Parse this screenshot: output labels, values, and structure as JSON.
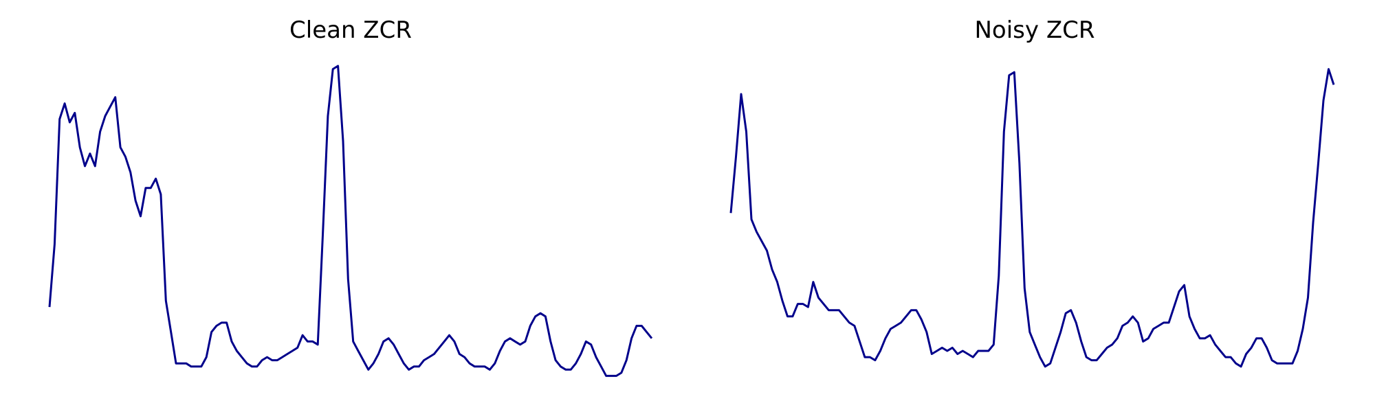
{
  "chart_data": [
    {
      "type": "line",
      "title": "Clean ZCR",
      "xlabel": "",
      "ylabel": "",
      "grid": false,
      "axes_visible": false,
      "color": "#00008B",
      "ylim": [
        0,
        1
      ],
      "x": [
        0,
        1,
        2,
        3,
        4,
        5,
        6,
        7,
        8,
        9,
        10,
        11,
        12,
        13,
        14,
        15,
        16,
        17,
        18,
        19,
        20,
        21,
        22,
        23,
        24,
        25,
        26,
        27,
        28,
        29,
        30,
        31,
        32,
        33,
        34,
        35,
        36,
        37,
        38,
        39,
        40,
        41,
        42,
        43,
        44,
        45,
        46,
        47,
        48,
        49,
        50,
        51,
        52,
        53,
        54,
        55,
        56,
        57,
        58,
        59,
        60,
        61,
        62,
        63,
        64,
        65,
        66,
        67,
        68,
        69,
        70,
        71,
        72,
        73,
        74,
        75,
        76,
        77,
        78,
        79,
        80,
        81,
        82,
        83,
        84,
        85,
        86,
        87,
        88,
        89,
        90,
        91,
        92,
        93,
        94,
        95,
        96,
        97,
        98,
        99,
        100,
        101,
        102,
        103,
        104,
        105,
        106,
        107,
        108,
        109,
        110,
        111,
        112,
        113,
        114,
        115,
        116,
        117,
        118,
        119
      ],
      "series": [
        {
          "values": [
            0.23,
            0.43,
            0.83,
            0.88,
            0.82,
            0.85,
            0.74,
            0.68,
            0.72,
            0.68,
            0.79,
            0.84,
            0.87,
            0.9,
            0.74,
            0.71,
            0.66,
            0.57,
            0.52,
            0.61,
            0.61,
            0.64,
            0.59,
            0.25,
            0.15,
            0.05,
            0.05,
            0.05,
            0.04,
            0.04,
            0.04,
            0.07,
            0.15,
            0.17,
            0.18,
            0.18,
            0.12,
            0.09,
            0.07,
            0.05,
            0.04,
            0.04,
            0.06,
            0.07,
            0.06,
            0.06,
            0.07,
            0.08,
            0.09,
            0.1,
            0.14,
            0.12,
            0.12,
            0.11,
            0.46,
            0.84,
            0.99,
            1.0,
            0.76,
            0.32,
            0.12,
            0.09,
            0.06,
            0.03,
            0.05,
            0.08,
            0.12,
            0.13,
            0.11,
            0.08,
            0.05,
            0.03,
            0.04,
            0.04,
            0.06,
            0.07,
            0.08,
            0.1,
            0.12,
            0.14,
            0.12,
            0.08,
            0.07,
            0.05,
            0.04,
            0.04,
            0.04,
            0.03,
            0.05,
            0.09,
            0.12,
            0.13,
            0.12,
            0.11,
            0.12,
            0.17,
            0.2,
            0.21,
            0.2,
            0.12,
            0.06,
            0.04,
            0.03,
            0.03,
            0.05,
            0.08,
            0.12,
            0.11,
            0.07,
            0.04,
            0.01,
            0.01,
            0.01,
            0.02,
            0.06,
            0.13,
            0.17,
            0.17,
            0.15,
            0.13
          ]
        }
      ]
    },
    {
      "type": "line",
      "title": "Noisy ZCR",
      "xlabel": "",
      "ylabel": "",
      "grid": false,
      "axes_visible": false,
      "color": "#00008B",
      "ylim": [
        0,
        1
      ],
      "x": [
        0,
        1,
        2,
        3,
        4,
        5,
        6,
        7,
        8,
        9,
        10,
        11,
        12,
        13,
        14,
        15,
        16,
        17,
        18,
        19,
        20,
        21,
        22,
        23,
        24,
        25,
        26,
        27,
        28,
        29,
        30,
        31,
        32,
        33,
        34,
        35,
        36,
        37,
        38,
        39,
        40,
        41,
        42,
        43,
        44,
        45,
        46,
        47,
        48,
        49,
        50,
        51,
        52,
        53,
        54,
        55,
        56,
        57,
        58,
        59,
        60,
        61,
        62,
        63,
        64,
        65,
        66,
        67,
        68,
        69,
        70,
        71,
        72,
        73,
        74,
        75,
        76,
        77,
        78,
        79,
        80,
        81,
        82,
        83,
        84,
        85,
        86,
        87,
        88,
        89,
        90,
        91,
        92,
        93,
        94,
        95,
        96,
        97,
        98,
        99,
        100,
        101,
        102,
        103,
        104,
        105,
        106,
        107,
        108,
        109,
        110,
        111,
        112,
        113,
        114,
        115,
        116,
        117
      ],
      "series": [
        {
          "values": [
            0.53,
            0.71,
            0.91,
            0.79,
            0.51,
            0.47,
            0.44,
            0.41,
            0.35,
            0.31,
            0.25,
            0.2,
            0.2,
            0.24,
            0.24,
            0.23,
            0.31,
            0.26,
            0.24,
            0.22,
            0.22,
            0.22,
            0.2,
            0.18,
            0.17,
            0.12,
            0.07,
            0.07,
            0.06,
            0.09,
            0.13,
            0.16,
            0.17,
            0.18,
            0.2,
            0.22,
            0.22,
            0.19,
            0.15,
            0.08,
            0.09,
            0.1,
            0.09,
            0.1,
            0.08,
            0.09,
            0.08,
            0.07,
            0.09,
            0.09,
            0.09,
            0.11,
            0.33,
            0.79,
            0.97,
            0.98,
            0.69,
            0.29,
            0.15,
            0.11,
            0.07,
            0.04,
            0.05,
            0.1,
            0.15,
            0.21,
            0.22,
            0.18,
            0.12,
            0.07,
            0.06,
            0.06,
            0.08,
            0.1,
            0.11,
            0.13,
            0.17,
            0.18,
            0.2,
            0.18,
            0.12,
            0.13,
            0.16,
            0.17,
            0.18,
            0.18,
            0.23,
            0.28,
            0.3,
            0.2,
            0.16,
            0.13,
            0.13,
            0.14,
            0.11,
            0.09,
            0.07,
            0.07,
            0.05,
            0.04,
            0.08,
            0.1,
            0.13,
            0.13,
            0.1,
            0.06,
            0.05,
            0.05,
            0.05,
            0.05,
            0.09,
            0.16,
            0.26,
            0.5,
            0.69,
            0.89,
            0.99,
            0.94
          ]
        }
      ]
    }
  ]
}
